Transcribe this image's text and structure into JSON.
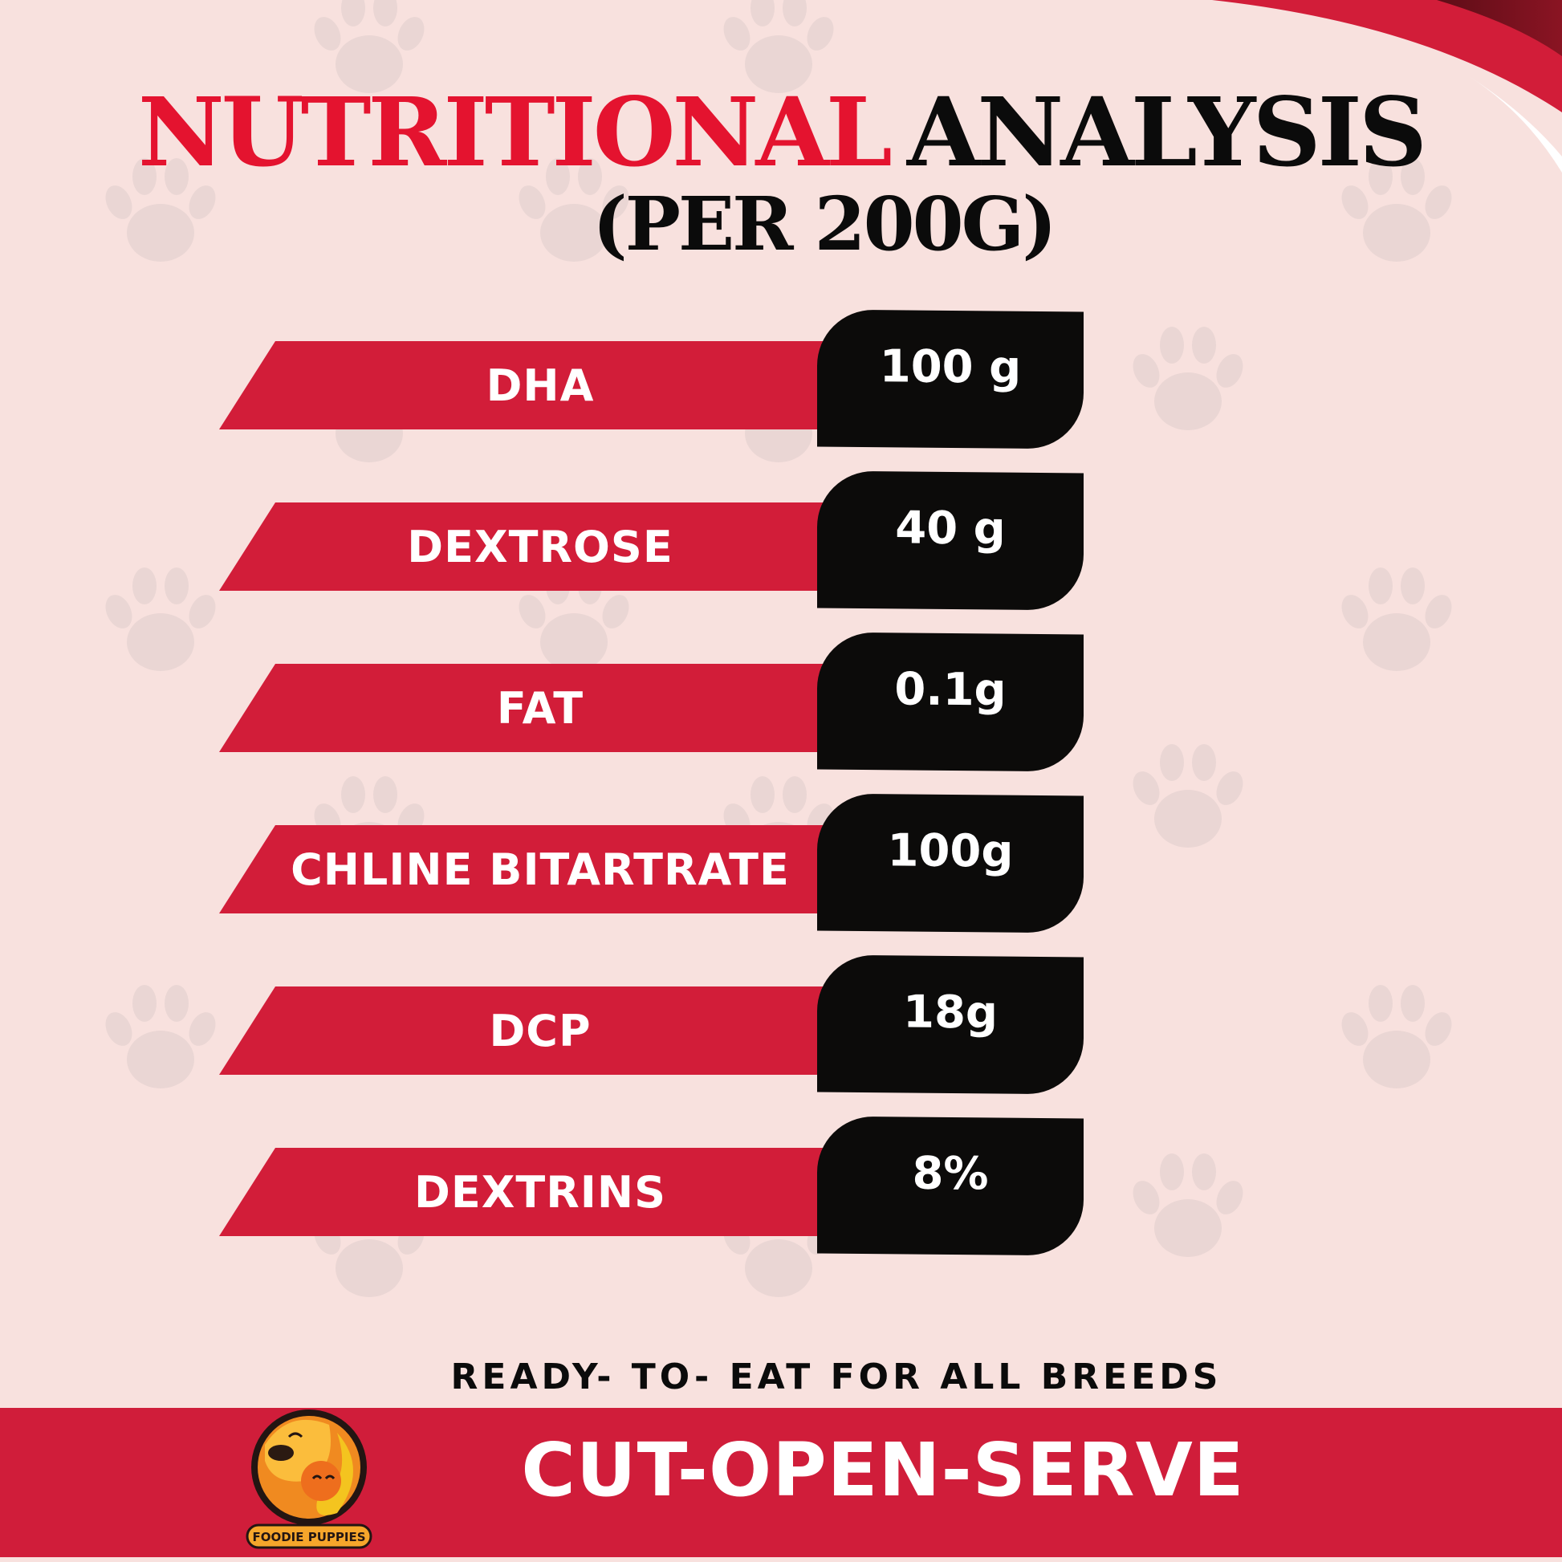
{
  "header": {
    "title_red": "NUTRITIONAL",
    "title_black": "ANALYSIS",
    "subtitle": "(PER 200G)"
  },
  "nutrients": [
    {
      "label": "DHA",
      "value": "100 g"
    },
    {
      "label": "DEXTROSE",
      "value": "40 g"
    },
    {
      "label": "FAT",
      "value": "0.1g"
    },
    {
      "label": "CHLINE BITARTRATE",
      "value": "100g"
    },
    {
      "label": "DCP",
      "value": "18g"
    },
    {
      "label": "DEXTRINS",
      "value": "8%"
    }
  ],
  "footer": {
    "tagline": "READY- TO- EAT FOR ALL BREEDS",
    "slogan": "CUT-OPEN-SERVE",
    "brand": "FOODIE PUPPIES"
  },
  "colors": {
    "accent": "#d21d39",
    "title_red": "#e4132f",
    "background": "#f8e1de",
    "box": "#0c0b0a"
  }
}
